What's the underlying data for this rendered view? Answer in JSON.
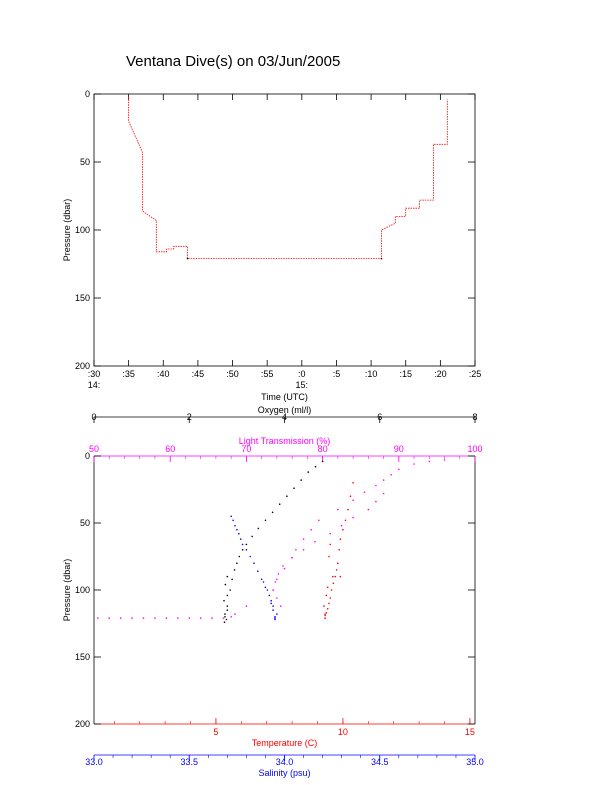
{
  "title": "Ventana Dive(s) on 03/Jun/2005",
  "colors": {
    "black": "#000000",
    "red": "#ff0000",
    "magenta": "#ff00ff",
    "blue": "#0000ff"
  },
  "chart_data": [
    {
      "type": "line",
      "xlabel": "Time (UTC)",
      "ylabel": "Pressure (dbar)",
      "xlim_minutes": [
        870,
        925
      ],
      "ylim": [
        0,
        200
      ],
      "y_reversed": true,
      "x_ticks": [
        ":30",
        ":35",
        ":40",
        ":45",
        ":50",
        ":55",
        ":0",
        ":5",
        ":10",
        ":15",
        ":20",
        ":25"
      ],
      "x_tick_values": [
        870,
        875,
        880,
        885,
        890,
        895,
        900,
        905,
        910,
        915,
        920,
        925
      ],
      "hour_labels": [
        "14:",
        "15:"
      ],
      "hour_label_values": [
        870,
        900
      ],
      "y_ticks": [
        "0",
        "50",
        "100",
        "150",
        "200"
      ],
      "y_tick_values": [
        0,
        50,
        100,
        150,
        200
      ],
      "series": [
        {
          "color": "red",
          "x": [
            875.0,
            875.0,
            877.0,
            877.0,
            879.0,
            879.0,
            879.3,
            879.3,
            880.5,
            880.5,
            881.5,
            881.5,
            882.0,
            882.0,
            883.5,
            883.5,
            911.5,
            911.5,
            913.5,
            913.5,
            915.0,
            915.0,
            917.0,
            917.0,
            919.0,
            919.0,
            921.0,
            921.0
          ],
          "y": [
            2,
            20,
            43,
            86,
            93,
            116,
            116,
            116,
            116,
            114,
            114,
            112,
            112,
            112,
            112,
            121,
            121,
            100,
            95,
            90,
            90,
            84,
            84,
            78,
            78,
            37,
            37,
            4
          ]
        }
      ]
    },
    {
      "type": "scatter",
      "xlabel": "Temperature (C)",
      "ylabel": "Pressure (dbar)",
      "ylim": [
        0,
        200
      ],
      "y_reversed": true,
      "y_ticks": [
        "0",
        "50",
        "100",
        "150",
        "200"
      ],
      "y_tick_values": [
        0,
        50,
        100,
        150,
        200
      ],
      "axes": {
        "oxygen": {
          "label": "Oxygen (ml/l)",
          "color": "black",
          "range": [
            0,
            8
          ],
          "ticks": [
            "0",
            "2",
            "4",
            "6",
            "8"
          ],
          "tick_values": [
            0,
            2,
            4,
            6,
            8
          ]
        },
        "light": {
          "label": "Light Transmission (%)",
          "color": "magenta",
          "range": [
            50,
            100
          ],
          "ticks": [
            "50",
            "60",
            "70",
            "80",
            "90",
            "100"
          ],
          "tick_values": [
            50,
            60,
            70,
            80,
            90,
            100
          ]
        },
        "temperature": {
          "label": "Temperature (C)",
          "color": "red",
          "range": [
            0.2,
            15.2
          ],
          "ticks": [
            "5",
            "10",
            "15"
          ],
          "tick_values": [
            5,
            10,
            15
          ]
        },
        "salinity": {
          "label": "Salinity (psu)",
          "color": "blue",
          "range": [
            33.0,
            35.0
          ],
          "ticks": [
            "33.0",
            "33.5",
            "34.0",
            "34.5",
            "35.0"
          ],
          "tick_values": [
            33.0,
            33.5,
            34.0,
            34.5,
            35.0
          ]
        }
      },
      "series": [
        {
          "name": "Oxygen (ml/l)",
          "color": "black",
          "axis": "oxygen",
          "x": [
            2.75,
            2.8,
            2.86,
            2.9,
            2.95,
            3.0,
            3.05,
            3.12,
            3.2,
            3.32,
            3.45,
            3.6,
            3.75,
            3.9,
            4.05,
            4.2,
            4.35,
            4.5,
            4.65,
            4.8,
            2.75,
            2.8,
            2.73,
            2.8,
            2.76,
            2.8,
            2.74,
            2.78
          ],
          "y": [
            120,
            112,
            100,
            92,
            85,
            80,
            75,
            70,
            66,
            60,
            54,
            48,
            42,
            36,
            30,
            24,
            18,
            12,
            8,
            4,
            118,
            115,
            108,
            104,
            96,
            90,
            124,
            122
          ]
        },
        {
          "name": "Light Transmission (%)",
          "color": "magenta",
          "axis": "light",
          "x": [
            50.5,
            52,
            53.5,
            55,
            56.5,
            58,
            59.5,
            61,
            62.5,
            64,
            65.5,
            67,
            68,
            68.5,
            70,
            73.5,
            74,
            75,
            76,
            76.5,
            77.5,
            78.5,
            79.5,
            82,
            84,
            85.5,
            87,
            88,
            89,
            90,
            92,
            94,
            96,
            74.5,
            74,
            73.5,
            73.8,
            74.2,
            74.8,
            76,
            77.5,
            79,
            81,
            82.5,
            84,
            86,
            87,
            88
          ],
          "y": [
            121,
            121,
            121,
            121,
            121,
            121,
            121,
            121,
            121,
            121,
            121,
            121,
            120,
            118,
            112,
            100,
            92,
            84,
            76,
            70,
            62,
            55,
            48,
            40,
            33,
            27,
            22,
            18,
            14,
            10,
            6,
            4,
            3,
            112,
            106,
            100,
            94,
            88,
            82,
            76,
            70,
            64,
            58,
            52,
            46,
            40,
            34,
            28
          ]
        },
        {
          "name": "Temperature (C)",
          "color": "red",
          "axis": "temperature",
          "x": [
            9.3,
            9.35,
            9.4,
            9.45,
            9.5,
            9.55,
            9.62,
            9.7,
            9.75,
            9.8,
            9.85,
            9.9,
            10.0,
            10.1,
            10.2,
            10.3,
            10.4,
            9.3,
            9.25,
            9.35,
            9.6,
            9.9,
            9.4,
            9.3,
            9.45,
            9.5
          ],
          "y": [
            121,
            117,
            114,
            110,
            106,
            100,
            95,
            90,
            85,
            80,
            70,
            62,
            55,
            48,
            40,
            30,
            20,
            119,
            112,
            104,
            90,
            90,
            98,
            118,
            75,
            66
          ]
        },
        {
          "name": "Salinity (psu)",
          "color": "blue",
          "axis": "salinity",
          "x": [
            33.95,
            33.94,
            33.93,
            33.92,
            33.9,
            33.88,
            33.86,
            33.84,
            33.82,
            33.8,
            33.78,
            33.77,
            33.76,
            33.75,
            33.74,
            33.73,
            33.72,
            33.95,
            33.96,
            33.94,
            33.93,
            33.95,
            33.91,
            33.89
          ],
          "y": [
            120,
            115,
            110,
            104,
            98,
            92,
            86,
            80,
            75,
            70,
            66,
            62,
            58,
            55,
            52,
            48,
            45,
            122,
            118,
            112,
            108,
            121,
            100,
            94
          ]
        }
      ]
    }
  ]
}
